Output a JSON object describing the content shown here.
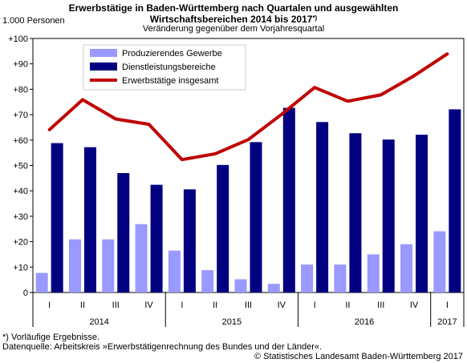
{
  "chart_data": {
    "type": "bar",
    "title_line1": "Erwerbstätige in Baden-Württemberg nach Quartalen und ausgewählten",
    "title_line2": "Wirtschaftsbereichen 2014 bis 2017",
    "title_marker": "*)",
    "subtitle": "Veränderung gegenüber dem Vorjahresquartal",
    "ylabel": "1.000 Personen",
    "ylim": [
      0,
      100
    ],
    "yticks": [
      0,
      10,
      20,
      30,
      40,
      50,
      60,
      70,
      80,
      90,
      100
    ],
    "ytick_labels": [
      "0",
      "+10",
      "+20",
      "+30",
      "+40",
      "+50",
      "+60",
      "+70",
      "+80",
      "+90",
      "+100"
    ],
    "categories": [
      "I",
      "II",
      "III",
      "IV",
      "I",
      "II",
      "III",
      "IV",
      "I",
      "II",
      "III",
      "IV",
      "I"
    ],
    "years": [
      {
        "label": "2014",
        "quarters": 4
      },
      {
        "label": "2015",
        "quarters": 4
      },
      {
        "label": "2016",
        "quarters": 4
      },
      {
        "label": "2017",
        "quarters": 1
      }
    ],
    "series": [
      {
        "name": "Produzierendes Gewerbe",
        "type": "bar",
        "color": "#9999ff",
        "values": [
          7.7,
          20.9,
          20.9,
          26.9,
          16.5,
          8.8,
          5.2,
          3.4,
          11,
          11,
          15,
          19,
          24.1
        ]
      },
      {
        "name": "Dienstleistungsbereiche",
        "type": "bar",
        "color": "#000080",
        "values": [
          58.8,
          57.2,
          47,
          42.4,
          40.6,
          50.2,
          59.2,
          72.7,
          67.1,
          62.7,
          60.2,
          62.1,
          72.1
        ]
      },
      {
        "name": "Erwerbstätige insgesamt",
        "type": "line",
        "color": "#c00000",
        "values": [
          64.1,
          75.9,
          68.3,
          66.2,
          52.3,
          54.6,
          60.2,
          70.1,
          80.7,
          75.3,
          77.8,
          85.3,
          93.9
        ]
      }
    ],
    "legend_position": "top-left",
    "grid": false
  },
  "footnotes": {
    "line1": "*) Vorläufige Ergebnisse.",
    "line2": "Datenquelle: Arbeitskreis »Erwerbstätigenrechnung des Bundes und der Länder«.",
    "line3": "© Statistisches Landesamt Baden-Württemberg 2017"
  }
}
